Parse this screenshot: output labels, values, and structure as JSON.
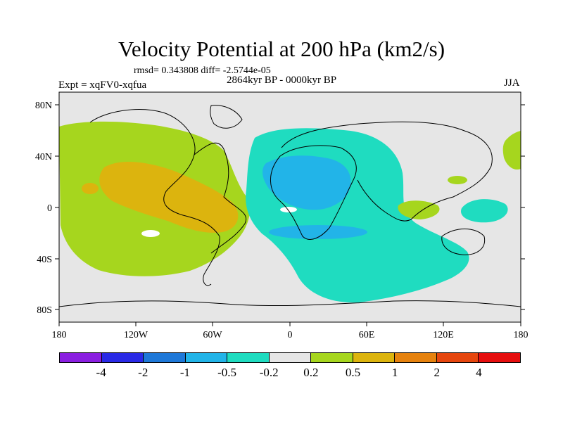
{
  "title": "Velocity Potential at 200 hPa (km2/s)",
  "stats": "rmsd= 0.343808 diff= -2.5744e-05",
  "experiment": "Expt = xqFV0-xqfua",
  "period": "2864kyr BP - 0000kyr BP",
  "season": "JJA",
  "axes": {
    "lat_labels": [
      "80N",
      "40N",
      "0",
      "40S",
      "80S"
    ],
    "lon_labels": [
      "180",
      "120W",
      "60W",
      "0",
      "60E",
      "120E",
      "180"
    ]
  },
  "colorbar": {
    "labels": [
      "-4",
      "-2",
      "-1",
      "-0.5",
      "-0.2",
      "0.2",
      "0.5",
      "1",
      "2",
      "4"
    ],
    "colors": [
      "#8a1ee0",
      "#2a2ae6",
      "#1e78d8",
      "#22b4e8",
      "#1fdcc0",
      "#e6e6e6",
      "#a6d61e",
      "#dcb40e",
      "#e6820e",
      "#e6460e",
      "#e60e0e"
    ]
  },
  "palette": {
    "neutral": "#e6e6e6",
    "pos_02": "#a6d61e",
    "pos_05": "#dcb40e",
    "neg_02": "#1fdcc0",
    "neg_05": "#22b4e8",
    "coast": "#000000"
  }
}
